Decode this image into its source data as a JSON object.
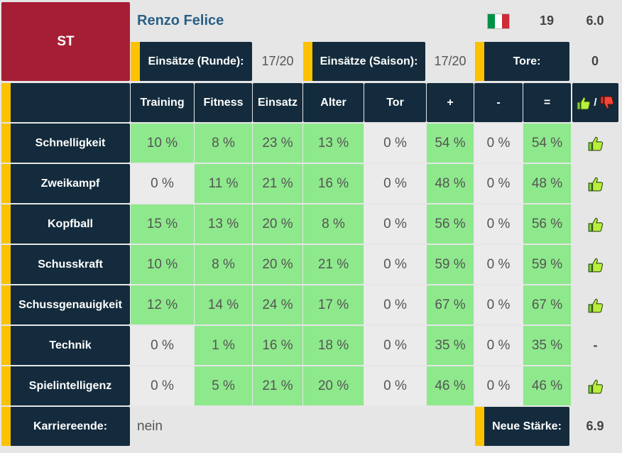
{
  "player": {
    "position": "ST",
    "name": "Renzo Felice",
    "age": "19",
    "rating": "6.0",
    "flag_colors": [
      "#009246",
      "#ffffff",
      "#ce2b37"
    ]
  },
  "stats": {
    "round_label": "Einsätze (Runde):",
    "round_value": "17/20",
    "season_label": "Einsätze (Saison):",
    "season_value": "17/20",
    "goals_label": "Tore:",
    "goals_value": "0"
  },
  "table": {
    "columns": [
      "Training",
      "Fitness",
      "Einsatz",
      "Alter",
      "Tor",
      "+",
      "-",
      "="
    ],
    "verdict_sep": "/",
    "rows": [
      {
        "label": "Schnelligkeit",
        "cells": [
          "10 %",
          "8 %",
          "23 %",
          "13 %",
          "0 %",
          "54 %",
          "0 %",
          "54 %"
        ],
        "verdict": "up"
      },
      {
        "label": "Zweikampf",
        "cells": [
          "0 %",
          "11 %",
          "21 %",
          "16 %",
          "0 %",
          "48 %",
          "0 %",
          "48 %"
        ],
        "verdict": "up"
      },
      {
        "label": "Kopfball",
        "cells": [
          "15 %",
          "13 %",
          "20 %",
          "8 %",
          "0 %",
          "56 %",
          "0 %",
          "56 %"
        ],
        "verdict": "up"
      },
      {
        "label": "Schusskraft",
        "cells": [
          "10 %",
          "8 %",
          "20 %",
          "21 %",
          "0 %",
          "59 %",
          "0 %",
          "59 %"
        ],
        "verdict": "up"
      },
      {
        "label": "Schussgenauigkeit",
        "cells": [
          "12 %",
          "14 %",
          "24 %",
          "17 %",
          "0 %",
          "67 %",
          "0 %",
          "67 %"
        ],
        "verdict": "up"
      },
      {
        "label": "Technik",
        "cells": [
          "0 %",
          "1 %",
          "16 %",
          "18 %",
          "0 %",
          "35 %",
          "0 %",
          "35 %"
        ],
        "verdict": "-"
      },
      {
        "label": "Spielintelligenz",
        "cells": [
          "0 %",
          "5 %",
          "21 %",
          "20 %",
          "0 %",
          "46 %",
          "0 %",
          "46 %"
        ],
        "verdict": "up"
      }
    ]
  },
  "footer": {
    "career_end_label": "Karriereende:",
    "career_end_value": "nein",
    "new_strength_label": "Neue Stärke:",
    "new_strength_value": "6.9"
  },
  "colors": {
    "navy": "#132b3c",
    "accent": "#fcc200",
    "position": "#a61e35",
    "green": "#8ee98c",
    "grey": "#ebebeb"
  }
}
